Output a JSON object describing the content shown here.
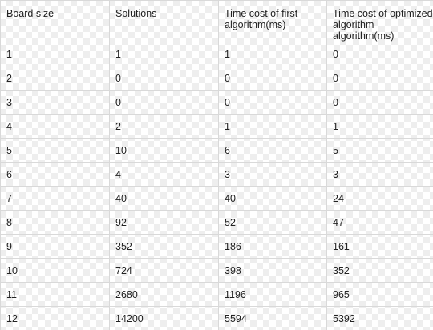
{
  "table": {
    "headers": [
      "Board size",
      "Solutions",
      "Time cost of first algorithm(ms)",
      "Time cost of optimized algorithm algorithm(ms)"
    ],
    "rows": [
      [
        "1",
        "1",
        "1",
        "0"
      ],
      [
        "2",
        "0",
        "0",
        "0"
      ],
      [
        "3",
        "0",
        "0",
        "0"
      ],
      [
        "4",
        "2",
        "1",
        "1"
      ],
      [
        "5",
        "10",
        "6",
        "5"
      ],
      [
        "6",
        "4",
        "3",
        "3"
      ],
      [
        "7",
        "40",
        "40",
        "24"
      ],
      [
        "8",
        "92",
        "52",
        "47"
      ],
      [
        "9",
        "352",
        "186",
        "161"
      ],
      [
        "10",
        "724",
        "398",
        "352"
      ],
      [
        "11",
        "2680",
        "1196",
        "965"
      ],
      [
        "12",
        "14200",
        "5594",
        "5392"
      ]
    ]
  }
}
